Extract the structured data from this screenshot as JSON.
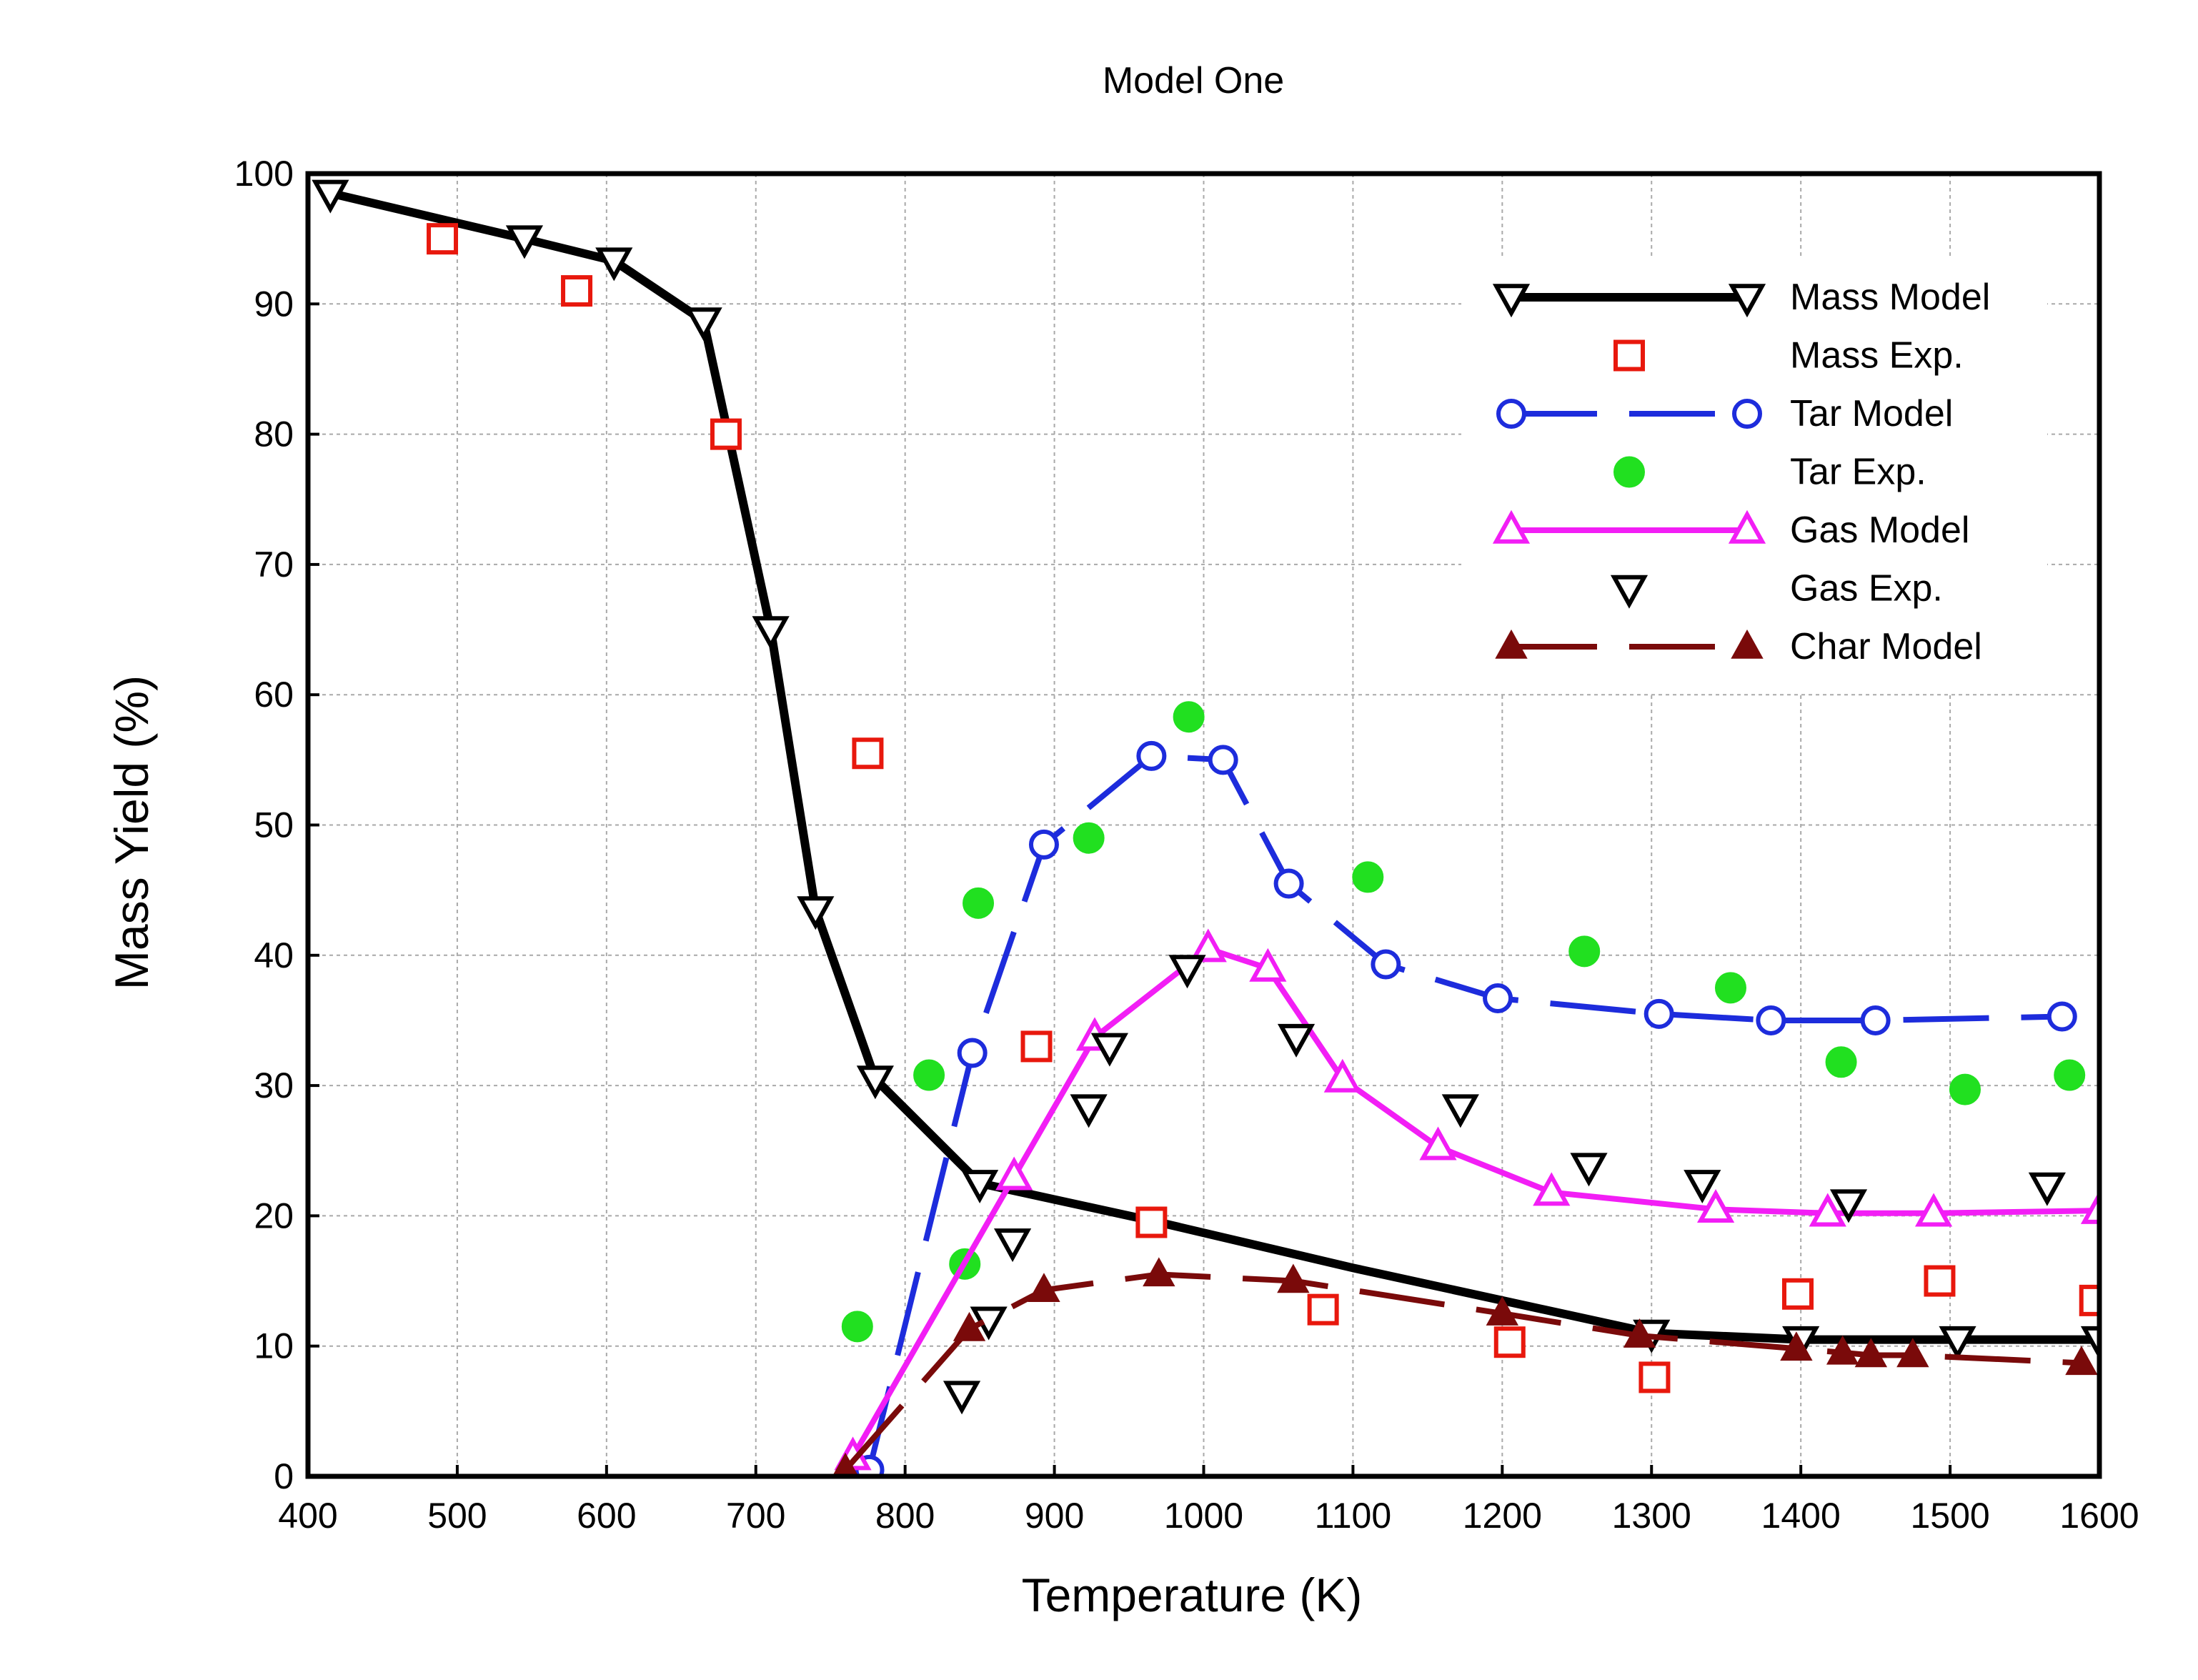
{
  "chart_data": {
    "type": "line",
    "title": "Model One",
    "xlabel": "Temperature (K)",
    "ylabel": "Mass  Yield (%)",
    "xlim": [
      400,
      1600
    ],
    "ylim": [
      0,
      100
    ],
    "x_ticks": [
      400,
      500,
      600,
      700,
      800,
      900,
      1000,
      1100,
      1200,
      1300,
      1400,
      1500,
      1600
    ],
    "y_ticks": [
      0,
      10,
      20,
      30,
      40,
      50,
      60,
      70,
      80,
      90,
      100
    ],
    "grid": true,
    "legend_position": "top-right",
    "series": [
      {
        "name": "Mass Model",
        "color": "#000000",
        "line": "solid",
        "marker": "triangle-down-open",
        "points": [
          [
            415,
            98.5
          ],
          [
            545,
            95
          ],
          [
            605,
            93.3
          ],
          [
            665,
            88.7
          ],
          [
            710,
            65
          ],
          [
            740,
            43.5
          ],
          [
            780,
            30.5
          ],
          [
            850,
            22.5
          ],
          [
            970,
            19.5
          ],
          [
            1100,
            16
          ],
          [
            1200,
            13.5
          ],
          [
            1300,
            11
          ],
          [
            1400,
            10.5
          ],
          [
            1500,
            10.5
          ],
          [
            1600,
            10.5
          ]
        ],
        "marker_points": [
          [
            415,
            98.5
          ],
          [
            545,
            95
          ],
          [
            605,
            93.3
          ],
          [
            665,
            88.7
          ],
          [
            710,
            65
          ],
          [
            740,
            43.5
          ],
          [
            780,
            30.5
          ],
          [
            850,
            22.5
          ],
          [
            1300,
            11
          ],
          [
            1400,
            10.5
          ],
          [
            1505,
            10.5
          ],
          [
            1600,
            10.5
          ]
        ]
      },
      {
        "name": "Mass Exp.",
        "color": "#e8180d",
        "line": "none",
        "marker": "square-open",
        "points": [
          [
            490,
            95
          ],
          [
            580,
            91
          ],
          [
            680,
            80
          ],
          [
            775,
            55.5
          ],
          [
            888,
            33
          ],
          [
            965,
            19.5
          ],
          [
            1080,
            12.8
          ],
          [
            1205,
            10.3
          ],
          [
            1302,
            7.6
          ],
          [
            1398,
            14
          ],
          [
            1493,
            15
          ],
          [
            1597,
            13.5
          ]
        ]
      },
      {
        "name": "Tar Model",
        "color": "#1d2cdc",
        "line": "dashed",
        "marker": "circle-open",
        "points": [
          [
            776,
            0.5
          ],
          [
            845,
            32.5
          ],
          [
            893,
            48.5
          ],
          [
            965,
            55.3
          ],
          [
            1013,
            55
          ],
          [
            1057,
            45.5
          ],
          [
            1122,
            39.3
          ],
          [
            1197,
            36.7
          ],
          [
            1305,
            35.5
          ],
          [
            1380,
            35
          ],
          [
            1450,
            35
          ],
          [
            1575,
            35.3
          ]
        ]
      },
      {
        "name": "Tar Exp.",
        "color": "#21e020",
        "line": "none",
        "marker": "circle-filled",
        "points": [
          [
            768,
            11.5
          ],
          [
            816,
            30.8
          ],
          [
            840,
            16.3
          ],
          [
            849,
            44
          ],
          [
            923,
            49
          ],
          [
            990,
            58.3
          ],
          [
            1110,
            46
          ],
          [
            1255,
            40.3
          ],
          [
            1353,
            37.5
          ],
          [
            1427,
            31.8
          ],
          [
            1510,
            29.7
          ],
          [
            1580,
            30.8
          ]
        ]
      },
      {
        "name": "Gas Model",
        "color": "#f21ef5",
        "line": "solid",
        "marker": "triangle-up-open",
        "points": [
          [
            765,
            1.5
          ],
          [
            873,
            23
          ],
          [
            927,
            33.7
          ],
          [
            1003,
            40.5
          ],
          [
            1043,
            39
          ],
          [
            1093,
            30.5
          ],
          [
            1157,
            25.3
          ],
          [
            1233,
            21.8
          ],
          [
            1343,
            20.5
          ],
          [
            1418,
            20.2
          ],
          [
            1489,
            20.2
          ],
          [
            1600,
            20.4
          ]
        ]
      },
      {
        "name": "Gas Exp.",
        "color": "#000000",
        "line": "none",
        "marker": "triangle-down-open",
        "points": [
          [
            838,
            6.3
          ],
          [
            856,
            12
          ],
          [
            872,
            18
          ],
          [
            923,
            28.3
          ],
          [
            937,
            33
          ],
          [
            989,
            39
          ],
          [
            1062,
            33.7
          ],
          [
            1172,
            28.3
          ],
          [
            1258,
            23.8
          ],
          [
            1334,
            22.5
          ],
          [
            1432,
            21
          ],
          [
            1565,
            22.3
          ]
        ]
      },
      {
        "name": "Char Model",
        "color": "#7a0a0a",
        "line": "dashed",
        "marker": "triangle-up-filled",
        "points": [
          [
            760,
            0.5
          ],
          [
            843,
            11.3
          ],
          [
            893,
            14.3
          ],
          [
            970,
            15.5
          ],
          [
            1060,
            15
          ],
          [
            1200,
            12.5
          ],
          [
            1292,
            10.8
          ],
          [
            1397,
            9.8
          ],
          [
            1428,
            9.5
          ],
          [
            1447,
            9.3
          ],
          [
            1475,
            9.3
          ],
          [
            1588,
            8.7
          ]
        ]
      }
    ]
  }
}
